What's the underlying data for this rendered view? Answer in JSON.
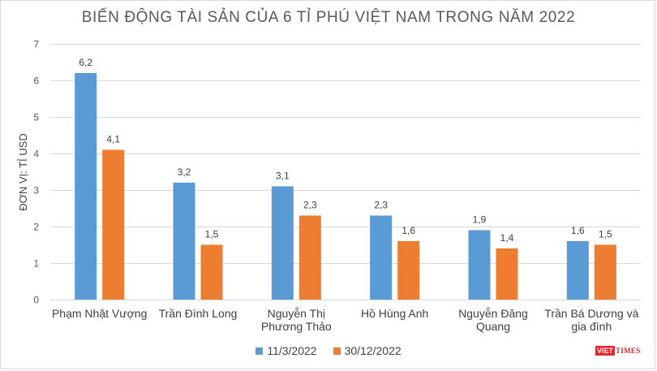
{
  "chart_data": {
    "type": "bar",
    "title": "BIẾN ĐỘNG TÀI SẢN CỦA 6 TỈ PHÚ VIỆT NAM TRONG NĂM 2022",
    "ylabel": "ĐƠN VỊ: TỈ USD",
    "xlabel": "",
    "ylim": [
      0,
      7
    ],
    "yticks": [
      "0",
      "1",
      "2",
      "3",
      "4",
      "5",
      "6",
      "7"
    ],
    "grid": true,
    "legend": "bottom",
    "categories": [
      [
        "Phạm Nhật Vượng"
      ],
      [
        "Trần Đình Long"
      ],
      [
        "Nguyễn Thị",
        "Phương Thảo"
      ],
      [
        "Hồ Hùng Anh"
      ],
      [
        "Nguyễn Đăng",
        "Quang"
      ],
      [
        "Trần Bá Dương và",
        "gia đình"
      ]
    ],
    "series": [
      {
        "name": "11/3/2022",
        "color": "#5b9bd5",
        "values": [
          6.2,
          3.2,
          3.1,
          2.3,
          1.9,
          1.6
        ],
        "labels": [
          "6,2",
          "3,2",
          "3,1",
          "2,3",
          "1,9",
          "1,6"
        ]
      },
      {
        "name": "30/12/2022",
        "color": "#ed7d31",
        "values": [
          4.1,
          1.5,
          2.3,
          1.6,
          1.4,
          1.5
        ],
        "labels": [
          "4,1",
          "1,5",
          "2,3",
          "1,6",
          "1,4",
          "1,5"
        ]
      }
    ]
  },
  "watermark": {
    "part1": "VIET",
    "part2": "TIMES"
  }
}
